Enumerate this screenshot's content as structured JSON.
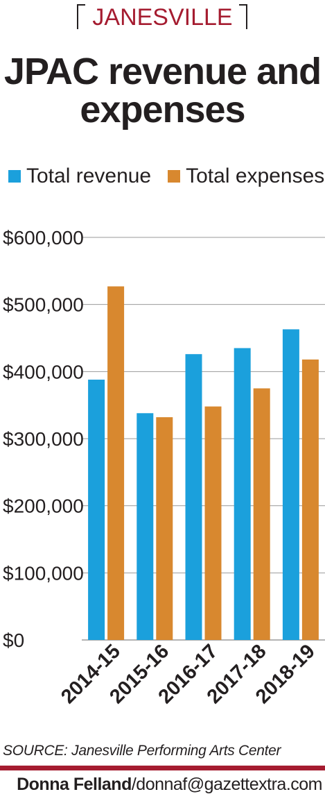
{
  "header": {
    "kicker": "JANESVILLE",
    "title": "JPAC revenue and expenses"
  },
  "legend": {
    "items": [
      {
        "label": "Total revenue",
        "color": "#1ba0dc"
      },
      {
        "label": "Total expenses",
        "color": "#d8882f"
      }
    ]
  },
  "chart_data": {
    "type": "bar",
    "title": "JPAC revenue and expenses",
    "categories": [
      "2014-15",
      "2015-16",
      "2016-17",
      "2017-18",
      "2018-19"
    ],
    "series": [
      {
        "name": "Total revenue",
        "color": "#1ba0dc",
        "values": [
          388000,
          338000,
          426000,
          435000,
          463000
        ]
      },
      {
        "name": "Total expenses",
        "color": "#d8882f",
        "values": [
          527000,
          332000,
          348000,
          375000,
          418000
        ]
      }
    ],
    "ylim": [
      0,
      600000
    ],
    "yticks": [
      0,
      100000,
      200000,
      300000,
      400000,
      500000,
      600000
    ],
    "ytick_labels": [
      "$0",
      "$100,000",
      "$200,000",
      "$300,000",
      "$400,000",
      "$500,000",
      "$600,000"
    ],
    "xlabel": "",
    "ylabel": "",
    "grid": true,
    "legend_position": "top"
  },
  "footer": {
    "source": "SOURCE: Janesville Performing Arts Center",
    "credit_name": "Donna Felland",
    "credit_contact": "/donnaf@gazettextra.com"
  }
}
